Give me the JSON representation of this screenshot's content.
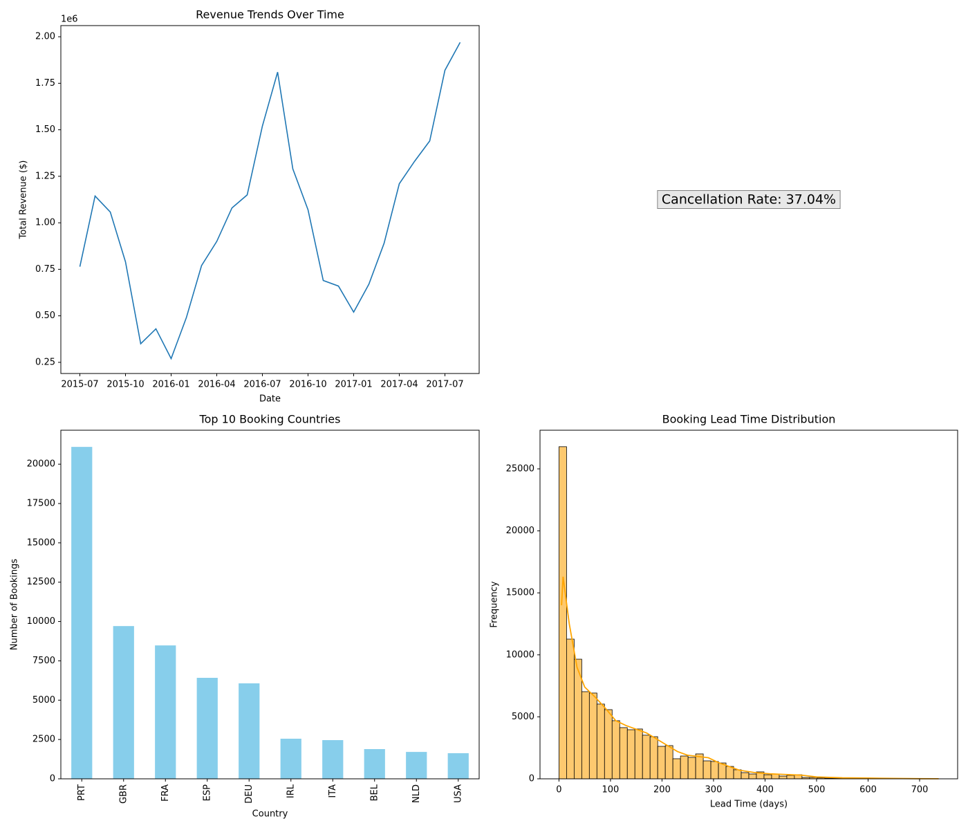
{
  "chart_data": [
    {
      "type": "line",
      "title": "Revenue Trends Over Time",
      "xlabel": "Date",
      "ylabel": "Total Revenue ($)",
      "offset_label": "1e6",
      "x": [
        "2015-07",
        "2015-08",
        "2015-09",
        "2015-10",
        "2015-11",
        "2015-12",
        "2016-01",
        "2016-02",
        "2016-03",
        "2016-04",
        "2016-05",
        "2016-06",
        "2016-07",
        "2016-08",
        "2016-09",
        "2016-10",
        "2016-11",
        "2016-12",
        "2017-01",
        "2017-02",
        "2017-03",
        "2017-04",
        "2017-05",
        "2017-06",
        "2017-07",
        "2017-08"
      ],
      "series": [
        {
          "color": "#1f77b4",
          "values": [
            0.764,
            1.144,
            1.058,
            0.79,
            0.35,
            0.43,
            0.27,
            0.49,
            0.77,
            0.9,
            1.08,
            1.15,
            1.52,
            1.81,
            1.29,
            1.07,
            0.69,
            0.66,
            0.52,
            0.67,
            0.89,
            1.21,
            1.33,
            1.44,
            1.82,
            1.97
          ]
        }
      ],
      "xticks": [
        "2015-07",
        "2015-10",
        "2016-01",
        "2016-04",
        "2016-07",
        "2016-10",
        "2017-01",
        "2017-04",
        "2017-07"
      ],
      "ylim": [
        0.19,
        2.06
      ],
      "yticks": [
        0.25,
        {
          "value": 0.5,
          "label": "0.50"
        },
        0.75,
        {
          "value": 1,
          "label": "1.00"
        },
        1.25,
        {
          "value": 1.5,
          "label": "1.50"
        },
        1.75,
        {
          "value": 2,
          "label": "2.00"
        }
      ]
    },
    {
      "type": "text",
      "text": "Cancellation Rate: 37.04%"
    },
    {
      "type": "bar",
      "title": "Top 10 Booking Countries",
      "xlabel": "Country",
      "ylabel": "Number of Bookings",
      "color": "#87ceeb",
      "categories": [
        "PRT",
        "GBR",
        "FRA",
        "ESP",
        "DEU",
        "IRL",
        "ITA",
        "BEL",
        "NLD",
        "USA"
      ],
      "values": [
        21100,
        9710,
        8480,
        6420,
        6070,
        2550,
        2460,
        1890,
        1710,
        1630
      ],
      "ylim": [
        0,
        22160
      ],
      "yticks": [
        0,
        2500,
        5000,
        7500,
        10000,
        12500,
        15000,
        17500,
        20000
      ]
    },
    {
      "type": "histogram",
      "title": "Booking Lead Time Distribution",
      "xlabel": "Lead Time (days)",
      "ylabel": "Frequency",
      "color": "#fdc96f",
      "edgecolor": "#000000",
      "bin_start": 0,
      "bin_end": 737,
      "counts": [
        26790,
        11270,
        9650,
        7030,
        6920,
        6030,
        5580,
        4690,
        4130,
        3960,
        4020,
        3520,
        3400,
        2620,
        2680,
        1620,
        1840,
        1730,
        2010,
        1450,
        1400,
        1280,
        1000,
        730,
        500,
        390,
        560,
        330,
        390,
        220,
        280,
        330,
        110,
        110,
        70,
        50,
        40,
        30,
        30,
        40,
        50,
        50,
        40,
        30,
        20,
        10,
        10,
        5,
        5,
        5
      ],
      "kde": {
        "color": "#ffa500",
        "x": [
          5,
          8,
          20,
          35,
          50,
          70,
          90,
          110,
          130,
          150,
          170,
          190,
          210,
          230,
          250,
          270,
          290,
          310,
          330,
          350,
          380,
          410,
          440,
          470,
          500,
          550,
          600,
          650,
          700,
          737
        ],
        "values": [
          14000,
          16300,
          12500,
          9000,
          7400,
          6600,
          5700,
          4700,
          4300,
          4000,
          3700,
          3200,
          2700,
          2200,
          1900,
          1800,
          1700,
          1300,
          1000,
          700,
          500,
          400,
          350,
          300,
          150,
          80,
          60,
          30,
          10,
          5
        ]
      },
      "xlim": [
        -36.8,
        773.8
      ],
      "xticks": [
        0,
        100,
        200,
        300,
        400,
        500,
        600,
        700
      ],
      "ylim": [
        0,
        28120
      ],
      "yticks": [
        0,
        5000,
        10000,
        15000,
        20000,
        25000
      ]
    }
  ]
}
